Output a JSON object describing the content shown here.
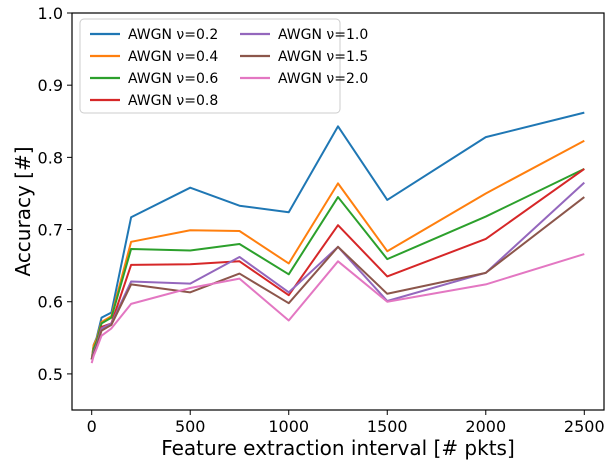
{
  "chart_data": {
    "type": "line",
    "xlabel": "Feature extraction interval [# pkts]",
    "ylabel": "Accuracy [#]",
    "xlim": [
      -100,
      2600
    ],
    "ylim": [
      0.45,
      1.0
    ],
    "x_ticks": [
      0,
      500,
      1000,
      1500,
      2000,
      2500
    ],
    "y_ticks": [
      0.5,
      0.6,
      0.7,
      0.8,
      0.9,
      1.0
    ],
    "y_tick_labels": [
      "0.5",
      "0.6",
      "0.7",
      "0.8",
      "0.9",
      "1.0"
    ],
    "legend": {
      "position": "top-left",
      "columns": 2
    },
    "grid": false,
    "x": [
      0,
      10,
      25,
      50,
      100,
      200,
      500,
      750,
      1000,
      1250,
      1500,
      2000,
      2500
    ],
    "series": [
      {
        "name": "AWGN ν=0.2",
        "color": "#1f77b4",
        "values": [
          0.52,
          0.54,
          0.55,
          0.578,
          0.585,
          0.717,
          0.758,
          0.733,
          0.724,
          0.843,
          0.741,
          0.828,
          0.862
        ]
      },
      {
        "name": "AWGN ν=0.4",
        "color": "#ff7f0e",
        "values": [
          0.52,
          0.54,
          0.548,
          0.572,
          0.58,
          0.683,
          0.699,
          0.698,
          0.653,
          0.764,
          0.67,
          0.75,
          0.823
        ]
      },
      {
        "name": "AWGN ν=0.6",
        "color": "#2ca02c",
        "values": [
          0.52,
          0.535,
          0.545,
          0.57,
          0.578,
          0.673,
          0.671,
          0.68,
          0.638,
          0.745,
          0.659,
          0.718,
          0.784
        ]
      },
      {
        "name": "AWGN ν=0.8",
        "color": "#d62728",
        "values": [
          0.52,
          0.53,
          0.54,
          0.565,
          0.57,
          0.651,
          0.652,
          0.656,
          0.609,
          0.706,
          0.635,
          0.687,
          0.784
        ]
      },
      {
        "name": "AWGN ν=1.0",
        "color": "#9467bd",
        "values": [
          0.52,
          0.53,
          0.54,
          0.563,
          0.57,
          0.628,
          0.625,
          0.662,
          0.613,
          0.676,
          0.601,
          0.64,
          0.765
        ]
      },
      {
        "name": "AWGN ν=1.5",
        "color": "#8c564b",
        "values": [
          0.52,
          0.528,
          0.538,
          0.56,
          0.568,
          0.624,
          0.613,
          0.639,
          0.598,
          0.676,
          0.611,
          0.64,
          0.745
        ]
      },
      {
        "name": "AWGN ν=2.0",
        "color": "#e377c2",
        "values": [
          0.515,
          0.525,
          0.535,
          0.553,
          0.563,
          0.597,
          0.619,
          0.632,
          0.574,
          0.656,
          0.6,
          0.624,
          0.666
        ]
      }
    ]
  }
}
